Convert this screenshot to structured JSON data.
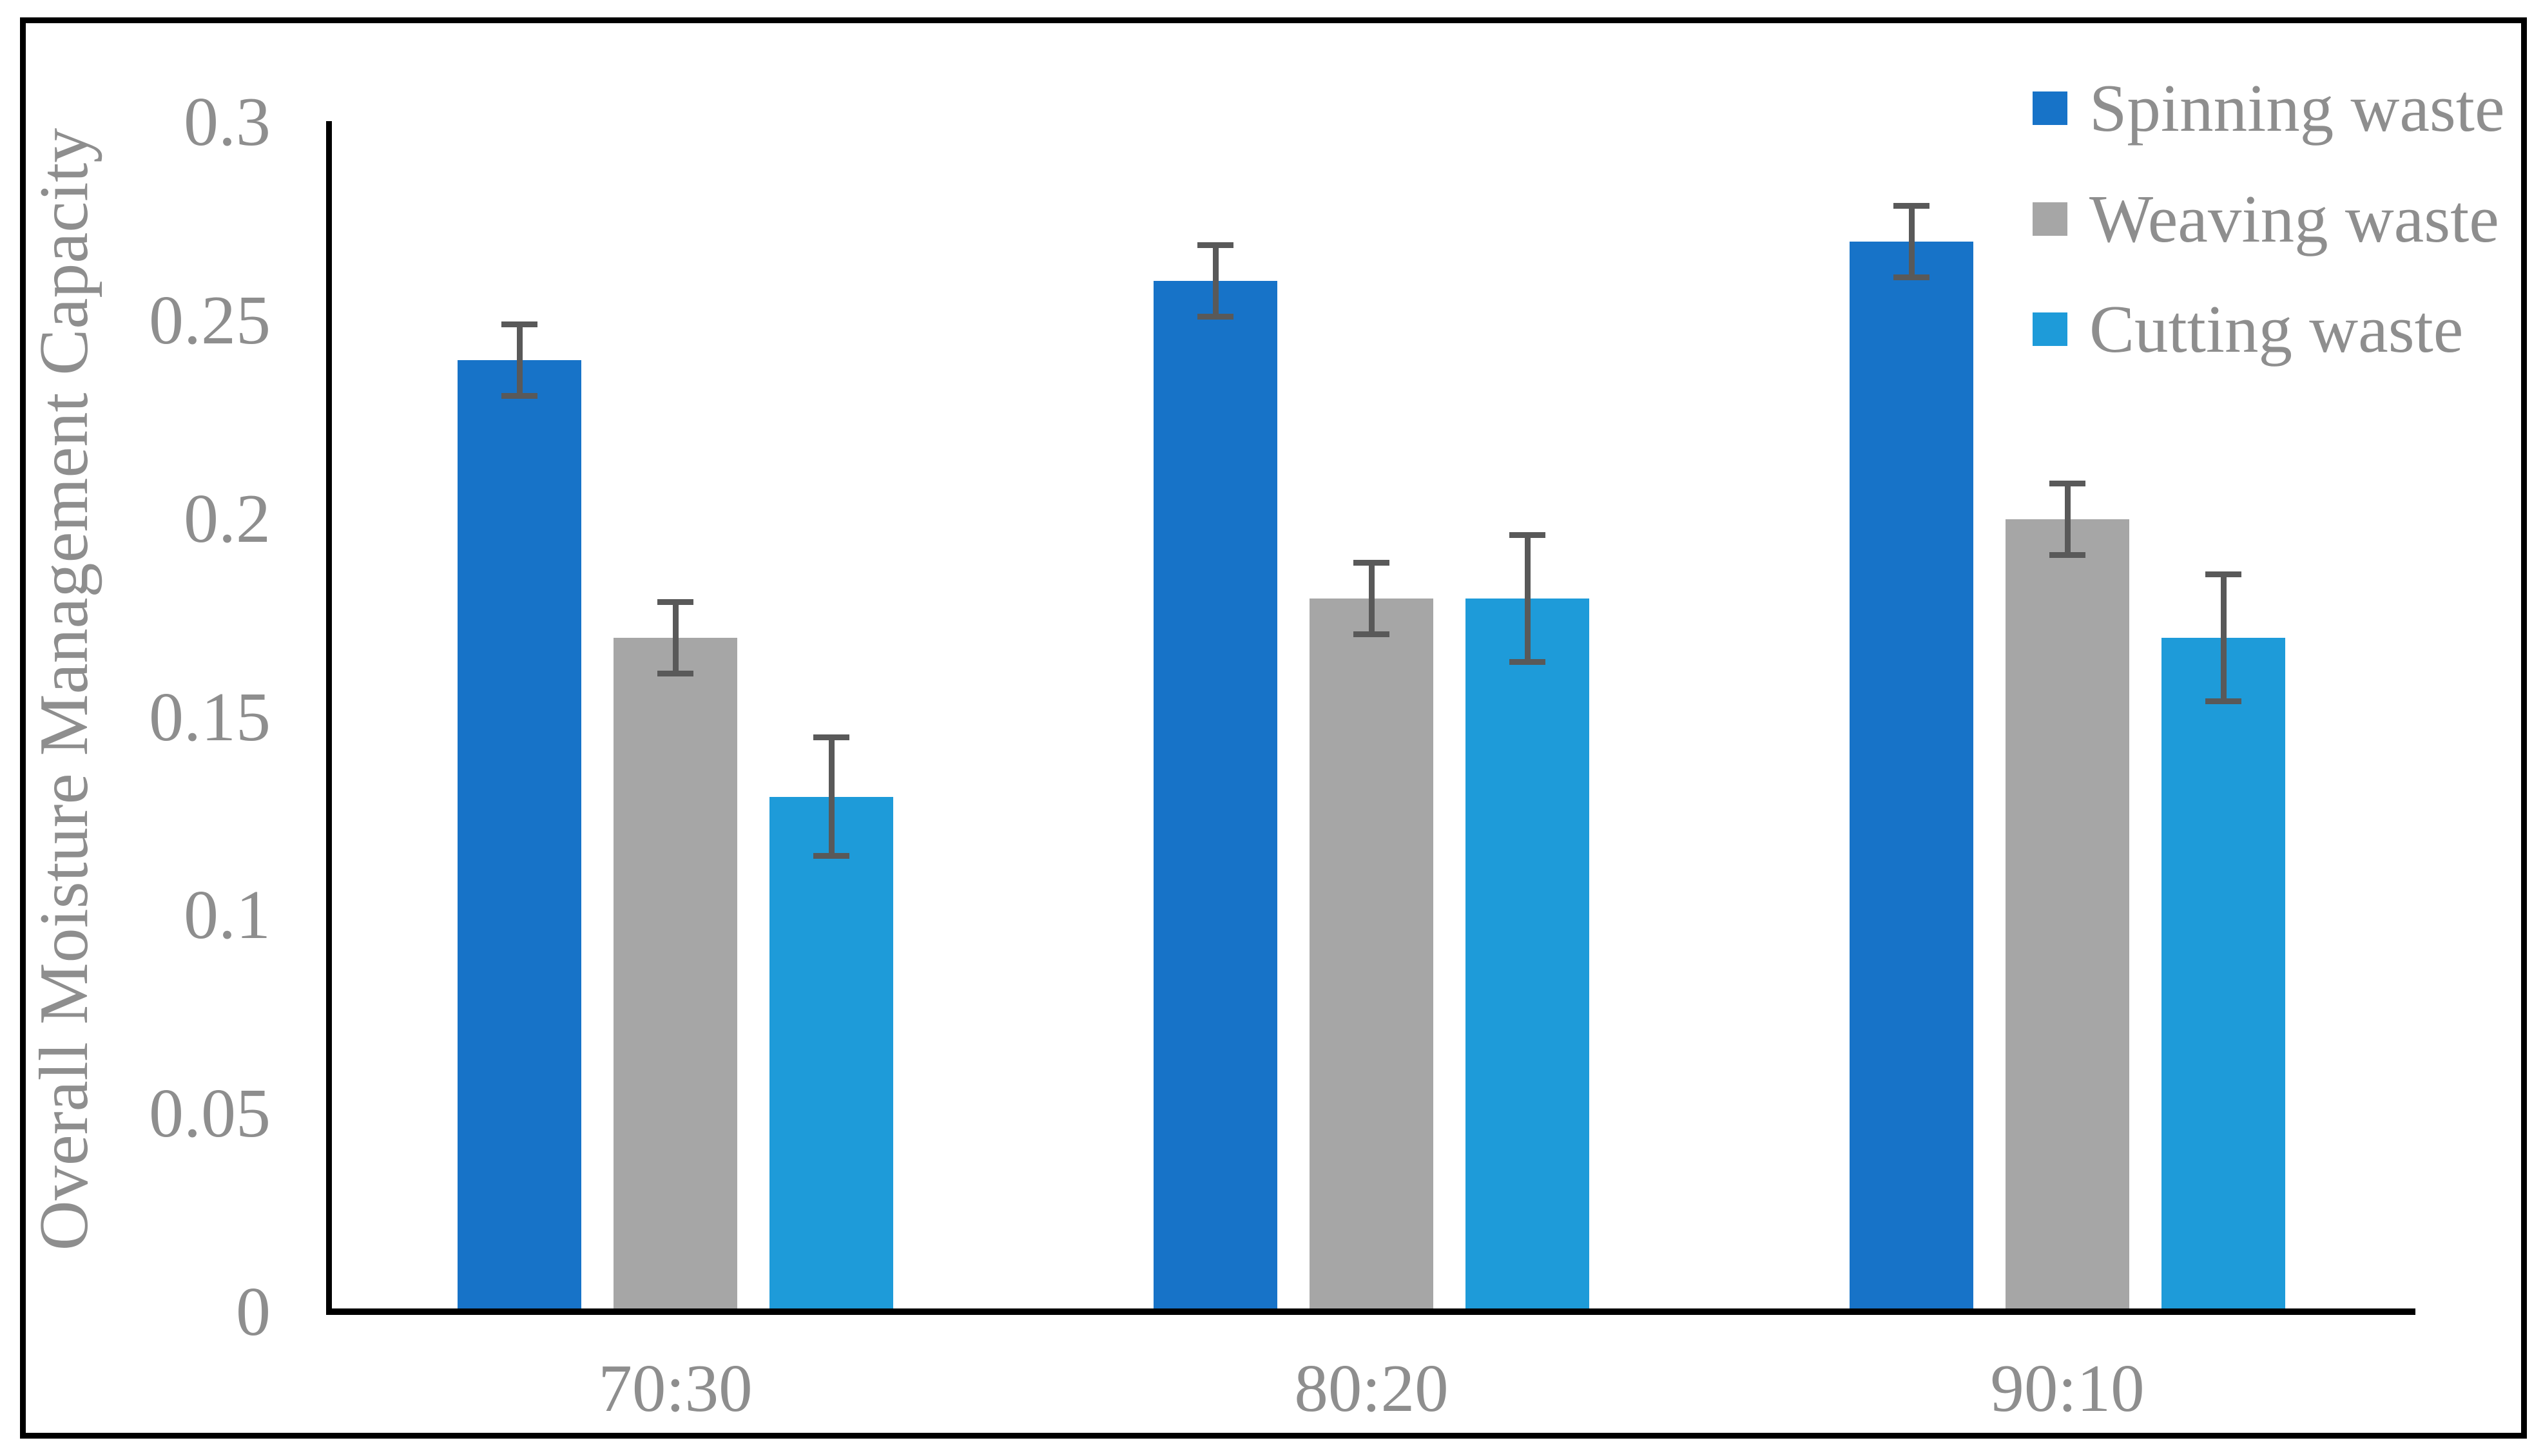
{
  "frame": {
    "border_color": "#000000",
    "background": "#ffffff"
  },
  "text_color": "#8E8E8E",
  "chart_data": {
    "type": "bar",
    "title": "",
    "categories": [
      "70:30",
      "80:20",
      "90:10"
    ],
    "series": [
      {
        "name": "Spinning waste",
        "color": "#1773C8",
        "values": [
          0.24,
          0.26,
          0.27
        ],
        "errors": [
          0.009,
          0.009,
          0.009
        ]
      },
      {
        "name": "Weaving waste",
        "color": "#A6A6A6",
        "values": [
          0.17,
          0.18,
          0.2
        ],
        "errors": [
          0.009,
          0.009,
          0.009
        ]
      },
      {
        "name": "Cutting waste",
        "color": "#1E9BD9",
        "values": [
          0.13,
          0.18,
          0.17
        ],
        "errors": [
          0.015,
          0.016,
          0.016
        ]
      }
    ],
    "xlabel": "",
    "ylabel": "Overall Moisture Management Capacity",
    "ylim": [
      0,
      0.3
    ],
    "yticks": [
      0,
      0.05,
      0.1,
      0.15,
      0.2,
      0.25,
      0.3
    ],
    "ytick_labels": [
      "0",
      "0.05",
      "0.1",
      "0.15",
      "0.2",
      "0.25",
      "0.3"
    ],
    "grid": false,
    "legend_position": "top-right",
    "error_bar_color": "#595959",
    "axis_color": "#000000"
  }
}
